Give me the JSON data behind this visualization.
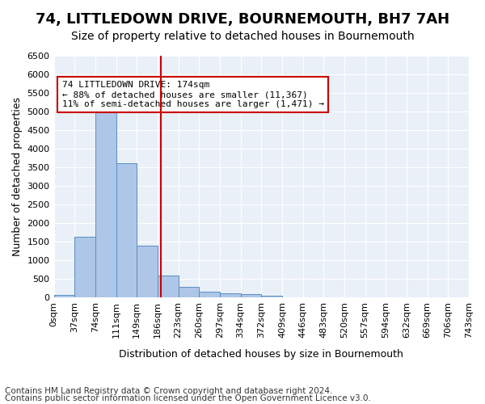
{
  "title": "74, LITTLEDOWN DRIVE, BOURNEMOUTH, BH7 7AH",
  "subtitle": "Size of property relative to detached houses in Bournemouth",
  "xlabel": "Distribution of detached houses by size in Bournemouth",
  "ylabel": "Number of detached properties",
  "bar_values": [
    65,
    1630,
    5080,
    3600,
    1400,
    600,
    290,
    150,
    115,
    90,
    40,
    10,
    5,
    0,
    0,
    0,
    0,
    0,
    0,
    0
  ],
  "bin_edge_labels": [
    "0sqm",
    "37sqm",
    "74sqm",
    "111sqm",
    "149sqm",
    "186sqm",
    "223sqm",
    "260sqm",
    "297sqm",
    "334sqm",
    "372sqm",
    "409sqm",
    "446sqm",
    "483sqm",
    "520sqm",
    "557sqm",
    "594sqm",
    "632sqm",
    "669sqm",
    "706sqm",
    "743sqm"
  ],
  "bar_color": "#aec6e8",
  "bar_edge_color": "#5a8fc2",
  "vline_x": 4.65,
  "vline_color": "#cc0000",
  "annotation_text": "74 LITTLEDOWN DRIVE: 174sqm\n← 88% of detached houses are smaller (11,367)\n11% of semi-detached houses are larger (1,471) →",
  "annotation_box_color": "#ffffff",
  "annotation_box_edge": "#cc0000",
  "ylim": [
    0,
    6500
  ],
  "yticks": [
    0,
    500,
    1000,
    1500,
    2000,
    2500,
    3000,
    3500,
    4000,
    4500,
    5000,
    5500,
    6000,
    6500
  ],
  "footnote1": "Contains HM Land Registry data © Crown copyright and database right 2024.",
  "footnote2": "Contains public sector information licensed under the Open Government Licence v3.0.",
  "plot_bg_color": "#eaf0f8",
  "title_fontsize": 13,
  "subtitle_fontsize": 10,
  "xlabel_fontsize": 9,
  "ylabel_fontsize": 9,
  "tick_fontsize": 8,
  "footnote_fontsize": 7.5
}
